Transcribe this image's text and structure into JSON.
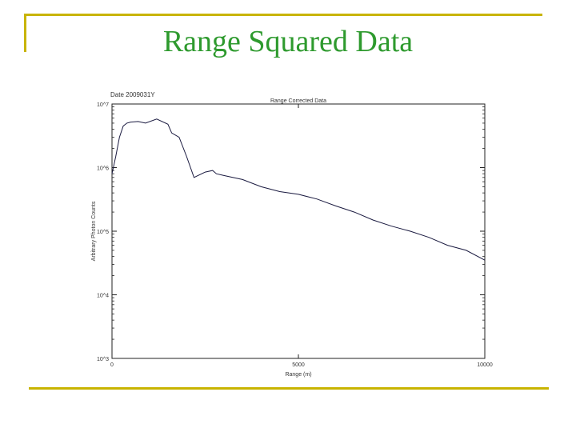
{
  "slide": {
    "title": "Range Squared Data"
  },
  "colors": {
    "title": "#2e9a2e",
    "decoration": "#c8b400",
    "data_line": "#1a1a40"
  },
  "chart_data": {
    "type": "line",
    "title": "Range Corrected Data",
    "date_label": "Date 2009031Y",
    "xlabel": "Range (m)",
    "ylabel": "Arbitrary Photon Counts",
    "xlim": [
      0,
      10000
    ],
    "ylim": [
      1000,
      10000000
    ],
    "yscale": "log",
    "xticks": [
      0,
      5000,
      10000
    ],
    "xtick_labels": [
      "0",
      "5000",
      "10000"
    ],
    "yticks": [
      1000,
      10000,
      100000,
      1000000,
      10000000
    ],
    "ytick_labels": [
      "10^3",
      "10^4",
      "10^5",
      "10^6",
      "10^7"
    ],
    "grid": false,
    "legend": "none",
    "series": [
      {
        "x": [
          0,
          100,
          200,
          300,
          400,
          500,
          700,
          900,
          1200,
          1500,
          1600,
          1800,
          2000,
          2200,
          2500,
          2700,
          2800,
          3000,
          3500,
          4000,
          4500,
          5000,
          5500,
          6000,
          6500,
          7000,
          7500,
          8000,
          8500,
          9000,
          9500,
          10000
        ],
        "y": [
          800000,
          1500000,
          3000000,
          4500000,
          5000000,
          5200000,
          5300000,
          5000000,
          5800000,
          4800000,
          3500000,
          3000000,
          1500000,
          700000,
          850000,
          900000,
          800000,
          750000,
          650000,
          500000,
          420000,
          380000,
          320000,
          250000,
          200000,
          150000,
          120000,
          100000,
          80000,
          60000,
          50000,
          35000
        ]
      }
    ]
  }
}
